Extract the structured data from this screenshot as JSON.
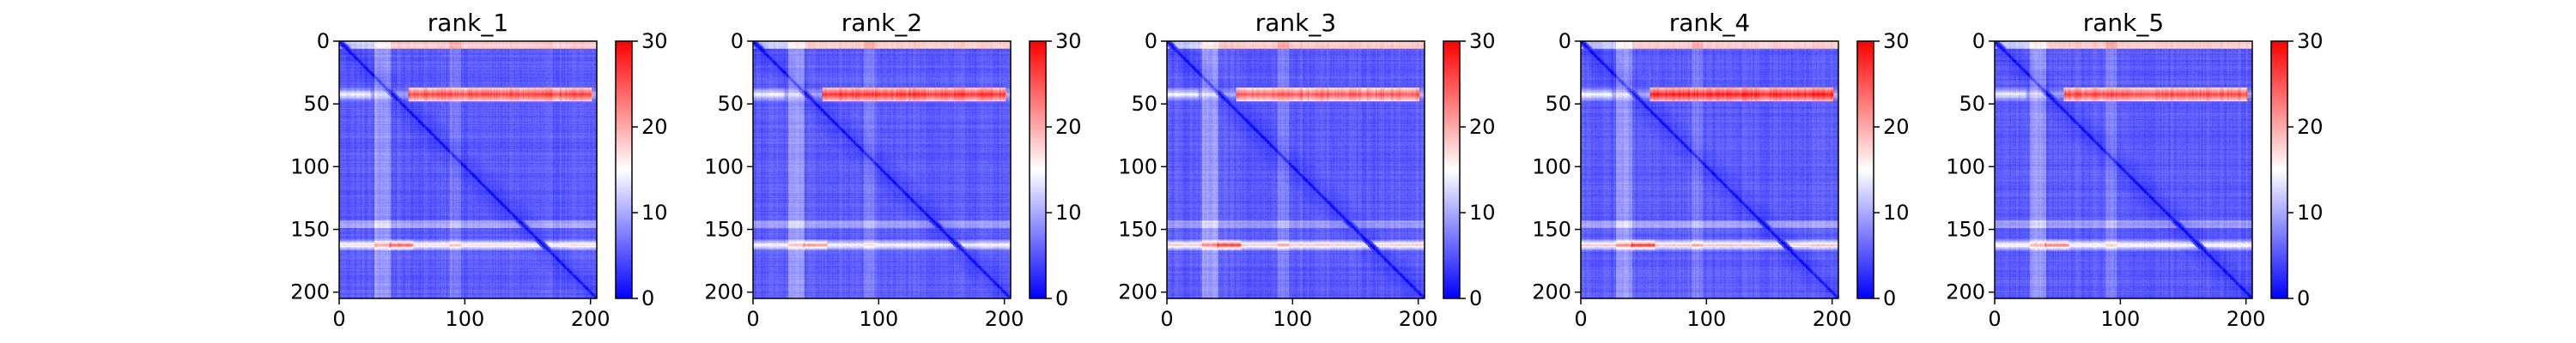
{
  "figure": {
    "background": "#ffffff",
    "colormap": {
      "name": "bwr",
      "low": "#0000ff",
      "mid": "#ffffff",
      "high": "#ff0000"
    }
  },
  "chart_data": [
    {
      "type": "heatmap",
      "title": "rank_1",
      "xlabel": "",
      "ylabel": "",
      "x_ticks": [
        "0",
        "100",
        "200"
      ],
      "y_ticks": [
        "0",
        "50",
        "100",
        "150",
        "200"
      ],
      "colorbar_ticks": [
        "0",
        "10",
        "20",
        "30"
      ],
      "xlim": [
        0,
        205
      ],
      "ylim": [
        205,
        0
      ],
      "clim": [
        0,
        30
      ],
      "n_residues": 205,
      "features": {
        "diagonal_value": 1,
        "background_value": 4,
        "red_band_rows": [
          37,
          47
        ],
        "red_band_cols": [
          55,
          200
        ],
        "red_band_value": 26,
        "second_band_rows": [
          158,
          166
        ],
        "second_band_value": 16,
        "top_band_rows": [
          0,
          5
        ],
        "top_band_value": 18
      }
    },
    {
      "type": "heatmap",
      "title": "rank_2",
      "xlabel": "",
      "ylabel": "",
      "x_ticks": [
        "0",
        "100",
        "200"
      ],
      "y_ticks": [
        "0",
        "50",
        "100",
        "150",
        "200"
      ],
      "colorbar_ticks": [
        "0",
        "10",
        "20",
        "30"
      ],
      "xlim": [
        0,
        205
      ],
      "ylim": [
        205,
        0
      ],
      "clim": [
        0,
        30
      ],
      "n_residues": 205,
      "features": {
        "diagonal_value": 1,
        "background_value": 4,
        "red_band_rows": [
          37,
          47
        ],
        "red_band_cols": [
          55,
          200
        ],
        "red_band_value": 27,
        "second_band_rows": [
          158,
          166
        ],
        "second_band_value": 14,
        "top_band_rows": [
          0,
          5
        ],
        "top_band_value": 18
      }
    },
    {
      "type": "heatmap",
      "title": "rank_3",
      "xlabel": "",
      "ylabel": "",
      "x_ticks": [
        "0",
        "100",
        "200"
      ],
      "y_ticks": [
        "0",
        "50",
        "100",
        "150",
        "200"
      ],
      "colorbar_ticks": [
        "0",
        "10",
        "20",
        "30"
      ],
      "xlim": [
        0,
        205
      ],
      "ylim": [
        205,
        0
      ],
      "clim": [
        0,
        30
      ],
      "n_residues": 205,
      "features": {
        "diagonal_value": 1,
        "background_value": 4,
        "red_band_rows": [
          37,
          47
        ],
        "red_band_cols": [
          55,
          200
        ],
        "red_band_value": 25,
        "second_band_rows": [
          158,
          166
        ],
        "second_band_value": 17,
        "top_band_rows": [
          0,
          5
        ],
        "top_band_value": 18
      }
    },
    {
      "type": "heatmap",
      "title": "rank_4",
      "xlabel": "",
      "ylabel": "",
      "x_ticks": [
        "0",
        "100",
        "200"
      ],
      "y_ticks": [
        "0",
        "50",
        "100",
        "150",
        "200"
      ],
      "colorbar_ticks": [
        "0",
        "10",
        "20",
        "30"
      ],
      "xlim": [
        0,
        205
      ],
      "ylim": [
        205,
        0
      ],
      "clim": [
        0,
        30
      ],
      "n_residues": 205,
      "features": {
        "diagonal_value": 1,
        "background_value": 4,
        "red_band_rows": [
          37,
          47
        ],
        "red_band_cols": [
          55,
          200
        ],
        "red_band_value": 28,
        "second_band_rows": [
          158,
          166
        ],
        "second_band_value": 17,
        "top_band_rows": [
          0,
          5
        ],
        "top_band_value": 18
      }
    },
    {
      "type": "heatmap",
      "title": "rank_5",
      "xlabel": "",
      "ylabel": "",
      "x_ticks": [
        "0",
        "100",
        "200"
      ],
      "y_ticks": [
        "0",
        "50",
        "100",
        "150",
        "200"
      ],
      "colorbar_ticks": [
        "0",
        "10",
        "20",
        "30"
      ],
      "xlim": [
        0,
        205
      ],
      "ylim": [
        205,
        0
      ],
      "clim": [
        0,
        30
      ],
      "n_residues": 205,
      "features": {
        "diagonal_value": 1,
        "background_value": 4,
        "red_band_rows": [
          37,
          47
        ],
        "red_band_cols": [
          55,
          200
        ],
        "red_band_value": 26,
        "second_band_rows": [
          158,
          166
        ],
        "second_band_value": 15,
        "top_band_rows": [
          0,
          5
        ],
        "top_band_value": 18
      }
    }
  ]
}
